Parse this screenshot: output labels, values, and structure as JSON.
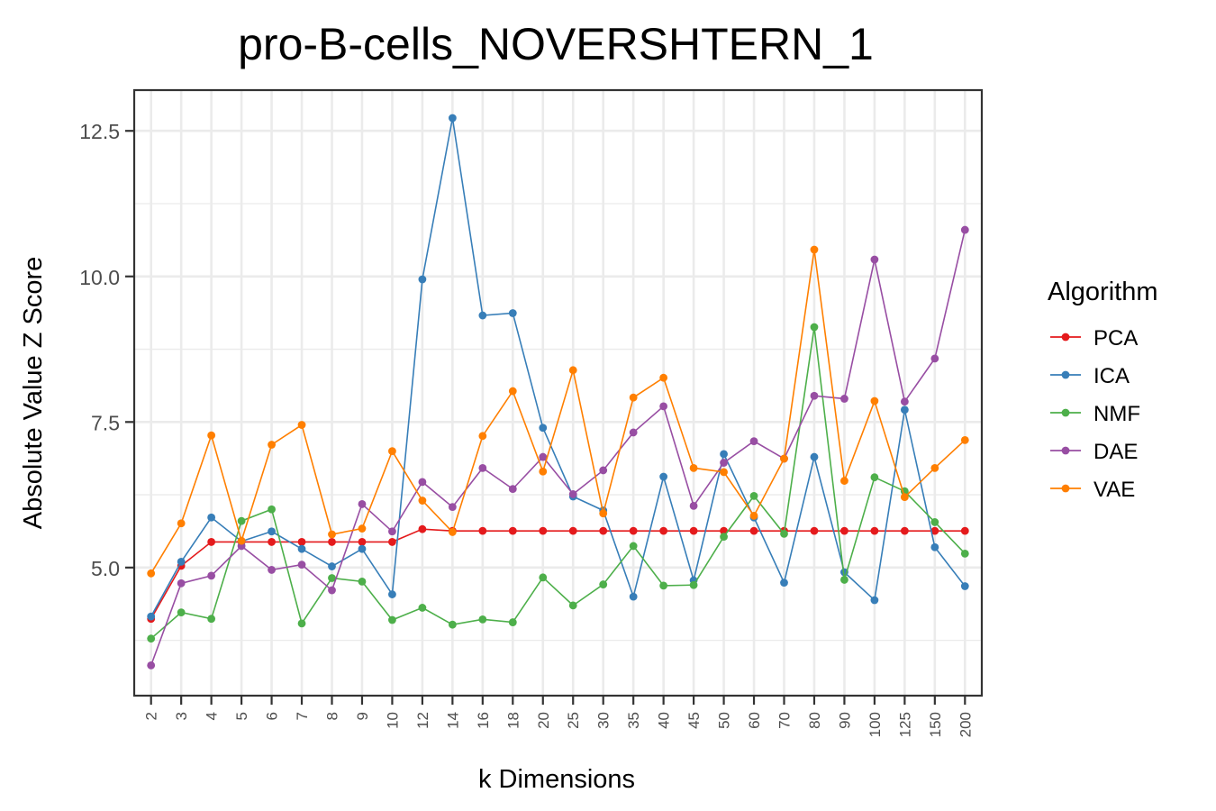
{
  "chart_data": {
    "type": "line",
    "title": "pro-B-cells_NOVERSHTERN_1",
    "xlabel": "k Dimensions",
    "ylabel": "Absolute Value Z Score",
    "categories": [
      "2",
      "3",
      "4",
      "5",
      "6",
      "7",
      "8",
      "9",
      "10",
      "12",
      "14",
      "16",
      "18",
      "20",
      "25",
      "30",
      "35",
      "40",
      "45",
      "50",
      "60",
      "70",
      "80",
      "90",
      "100",
      "125",
      "150",
      "200"
    ],
    "y_ticks": [
      5.0,
      7.5,
      10.0,
      12.5
    ],
    "y_tick_labels": [
      "5.0",
      "7.5",
      "10.0",
      "12.5"
    ],
    "ylim": [
      2.8,
      13.2
    ],
    "grid": true,
    "legend_title": "Algorithm",
    "legend_position": "right",
    "series": [
      {
        "name": "PCA",
        "color": "#e41a1c",
        "values": [
          4.12,
          5.03,
          5.44,
          5.44,
          5.44,
          5.44,
          5.44,
          5.44,
          5.44,
          5.66,
          5.63,
          5.63,
          5.63,
          5.63,
          5.63,
          5.63,
          5.63,
          5.63,
          5.63,
          5.63,
          5.63,
          5.63,
          5.63,
          5.63,
          5.63,
          5.63,
          5.63,
          5.63
        ]
      },
      {
        "name": "ICA",
        "color": "#377eb8",
        "values": [
          4.16,
          5.1,
          5.86,
          5.45,
          5.62,
          5.32,
          5.02,
          5.32,
          4.54,
          9.95,
          12.72,
          9.33,
          9.37,
          7.4,
          6.22,
          5.98,
          4.5,
          6.56,
          4.78,
          6.95,
          5.86,
          4.74,
          6.9,
          4.92,
          4.44,
          7.71,
          5.35,
          4.68
        ]
      },
      {
        "name": "NMF",
        "color": "#4daf4a",
        "values": [
          3.78,
          4.23,
          4.12,
          5.8,
          6.0,
          4.04,
          4.82,
          4.76,
          4.1,
          4.31,
          4.02,
          4.11,
          4.06,
          4.83,
          4.35,
          4.71,
          5.37,
          4.69,
          4.7,
          5.53,
          6.23,
          5.58,
          9.13,
          4.79,
          6.55,
          6.31,
          5.78,
          5.24
        ]
      },
      {
        "name": "DAE",
        "color": "#984ea3",
        "values": [
          3.32,
          4.73,
          4.86,
          5.37,
          4.96,
          5.05,
          4.61,
          6.09,
          5.62,
          6.47,
          6.04,
          6.71,
          6.35,
          6.9,
          6.26,
          6.67,
          7.32,
          7.77,
          6.06,
          6.8,
          7.17,
          6.87,
          7.95,
          7.9,
          10.29,
          7.85,
          8.59,
          10.8
        ]
      },
      {
        "name": "VAE",
        "color": "#ff7f00",
        "values": [
          4.9,
          5.76,
          7.27,
          5.46,
          7.11,
          7.45,
          5.57,
          5.67,
          7.0,
          6.15,
          5.61,
          7.26,
          8.03,
          6.65,
          8.39,
          5.93,
          7.92,
          8.26,
          6.71,
          6.64,
          5.89,
          6.87,
          10.46,
          6.49,
          7.86,
          6.21,
          6.71,
          7.19
        ]
      }
    ]
  }
}
